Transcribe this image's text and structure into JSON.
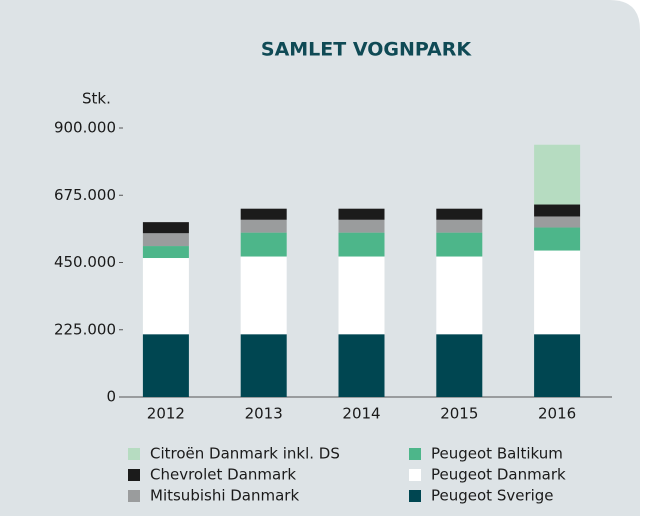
{
  "chart_data": {
    "type": "stacked-bar",
    "title": "SAMLET VOGNPARK",
    "y_label": "Stk.",
    "categories": [
      "2012",
      "2013",
      "2014",
      "2015",
      "2016"
    ],
    "series": [
      {
        "name": "Peugeot Sverige",
        "color": "#004651",
        "values": [
          210000,
          210000,
          210000,
          210000,
          210000
        ]
      },
      {
        "name": "Peugeot Danmark",
        "color": "#ffffff",
        "values": [
          255000,
          260000,
          260000,
          260000,
          280000
        ]
      },
      {
        "name": "Peugeot Baltikum",
        "color": "#4db68a",
        "values": [
          40000,
          80000,
          80000,
          80000,
          77000
        ]
      },
      {
        "name": "Mitsubishi Danmark",
        "color": "#9a9c9d",
        "values": [
          43000,
          43000,
          43000,
          43000,
          37000
        ]
      },
      {
        "name": "Chevrolet Danmark",
        "color": "#1b1b1b",
        "values": [
          37000,
          37000,
          37000,
          37000,
          40000
        ]
      },
      {
        "name": "Citroën Danmark inkl. DS",
        "color": "#b6dcc1",
        "values": [
          0,
          0,
          0,
          0,
          200000
        ]
      }
    ],
    "ylim": [
      0,
      900000
    ],
    "yticks": [
      0,
      {
        "value": 225000,
        "label": "225.000"
      },
      {
        "value": 450000,
        "label": "450.000"
      },
      {
        "value": 675000,
        "label": "675.000"
      },
      {
        "value": 900000,
        "label": "900.000"
      }
    ]
  }
}
